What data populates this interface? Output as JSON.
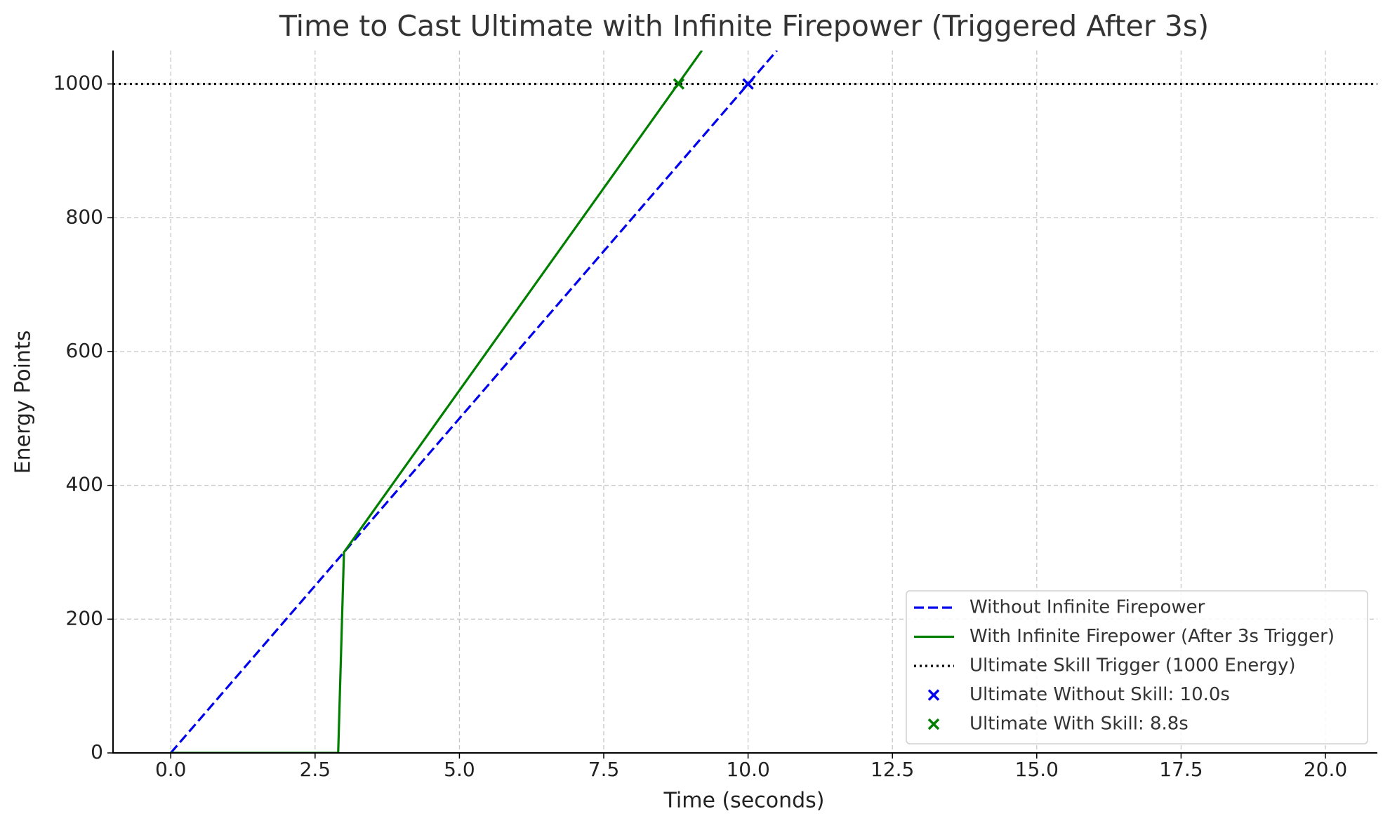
{
  "chart_data": {
    "type": "line",
    "title": "Time to Cast Ultimate with Infinite Firepower (Triggered After 3s)",
    "x_label": "Time (seconds)",
    "y_label": "Energy Points",
    "xlim": [
      -1,
      20.9
    ],
    "ylim": [
      0,
      1050
    ],
    "xticks": [
      {
        "value": 0,
        "label": "0.0"
      },
      2.5,
      {
        "value": 5,
        "label": "5.0"
      },
      7.5,
      {
        "value": 10,
        "label": "10.0"
      },
      12.5,
      {
        "value": 15,
        "label": "15.0"
      },
      17.5,
      {
        "value": 20,
        "label": "20.0"
      }
    ],
    "yticks": [
      0,
      200,
      400,
      600,
      800,
      1000
    ],
    "grid": true,
    "legend": "lower right",
    "series": [
      {
        "name": "Without Infinite Firepower",
        "kind": "line",
        "style": "dashed",
        "color": "#0000ee",
        "x": [
          0,
          10.5
        ],
        "values": [
          0,
          1050
        ]
      },
      {
        "name": "With Infinite Firepower (After 3s Trigger)",
        "kind": "line",
        "style": "solid",
        "color": "#007f00",
        "x": [
          0,
          2.9,
          3,
          9.2
        ],
        "values": [
          0,
          0,
          300,
          1050
        ]
      },
      {
        "name": "Ultimate Skill Trigger (1000 Energy)",
        "kind": "hline",
        "style": "dotted",
        "color": "#000000",
        "values": [
          1000
        ]
      },
      {
        "name": "Ultimate Without Skill: 10.0s",
        "kind": "scatter",
        "color": "#0000ee",
        "x": [
          10
        ],
        "values": [
          1000
        ]
      },
      {
        "name": "Ultimate With Skill: 8.8s",
        "kind": "scatter",
        "color": "#007f00",
        "x": [
          8.8
        ],
        "values": [
          1000
        ]
      }
    ]
  }
}
